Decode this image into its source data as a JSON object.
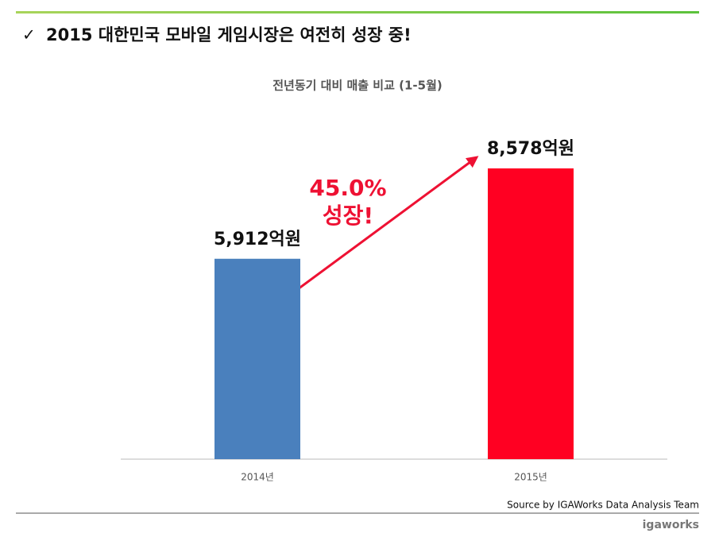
{
  "header": {
    "title": "2015 대한민국 모바일 게임시장은 여전히 성장 중!"
  },
  "chart_data": {
    "type": "bar",
    "title": "전년동기 대비 매출 비교 (1-5월)",
    "categories": [
      "2014년",
      "2015년"
    ],
    "values": [
      5912,
      8578
    ],
    "value_labels": [
      "5,912억원",
      "8,578억원"
    ],
    "colors": [
      "#4a80bd",
      "#ff0022"
    ],
    "annotation": [
      "45.0%",
      "성장!"
    ]
  },
  "footer": {
    "source": "Source by IGAWorks Data Analysis Team",
    "logo": "igaworks"
  }
}
